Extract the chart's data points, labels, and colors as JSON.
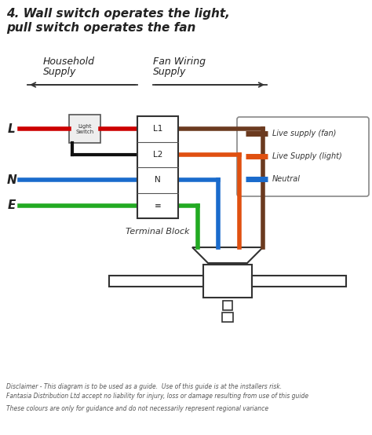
{
  "title_line1": "4. Wall switch operates the light,",
  "title_line2": "pull switch operates the fan",
  "title_fontsize": 11,
  "wire_colors": {
    "L1_left": "#cc0000",
    "N_left": "#1a6bcc",
    "E_left": "#22aa22",
    "switch_wire": "#111111",
    "L1_right": "#6b3a1f",
    "L2_right": "#e05010",
    "N_right": "#1a6bcc",
    "E_right": "#22aa22"
  },
  "legend_colors": {
    "Live supply (fan)": "#6b3a1f",
    "Live Supply (light)": "#e05010",
    "Neutral": "#1a6bcc"
  },
  "terminal_labels": [
    "L1",
    "L2",
    "N",
    "≡"
  ],
  "disclaimer1": "Disclaimer - This diagram is to be used as a guide.  Use of this guide is at the installers risk.",
  "disclaimer2": "Fantasia Distribution Ltd accept no liability for injury, loss or damage resulting from use of this guide",
  "disclaimer3": "These colours are only for guidance and do not necessarily represent regional variance",
  "bg_color": "#ffffff"
}
